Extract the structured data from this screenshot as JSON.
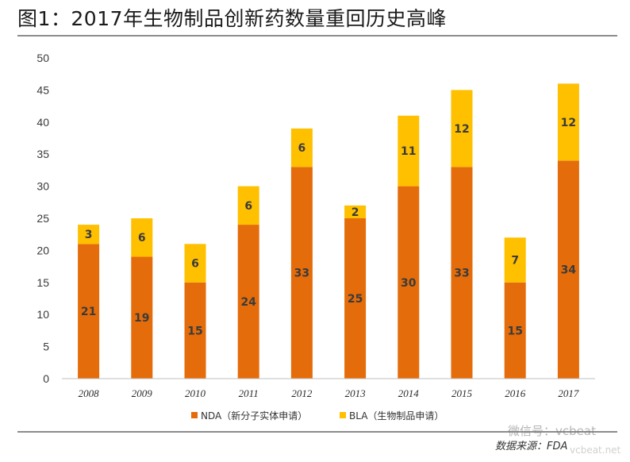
{
  "title": "图1：2017年生物制品创新药数量重回历史高峰",
  "source": "数据来源：FDA",
  "watermark": "微信号：vcbeat",
  "watermark_sub": "vcbeat.net",
  "colors": {
    "nda": "#E46C0A",
    "bla": "#FFC000",
    "axis": "#bfbfbf",
    "rule": "#8c8c8c"
  },
  "chart_data": {
    "type": "bar",
    "stacked": true,
    "categories": [
      "2008",
      "2009",
      "2010",
      "2011",
      "2012",
      "2013",
      "2014",
      "2015",
      "2016",
      "2017"
    ],
    "series": [
      {
        "name": "NDA（新分子实体申请）",
        "values": [
          21,
          19,
          15,
          24,
          33,
          25,
          30,
          33,
          15,
          34
        ]
      },
      {
        "name": "BLA（生物制品申请）",
        "values": [
          3,
          6,
          6,
          6,
          6,
          2,
          11,
          12,
          7,
          12
        ]
      }
    ],
    "ylim": [
      0,
      50
    ],
    "yticks": [
      0,
      5,
      10,
      15,
      20,
      25,
      30,
      35,
      40,
      45,
      50
    ],
    "grid": false,
    "legend": "bottom-center",
    "xlabel": "",
    "ylabel": ""
  }
}
